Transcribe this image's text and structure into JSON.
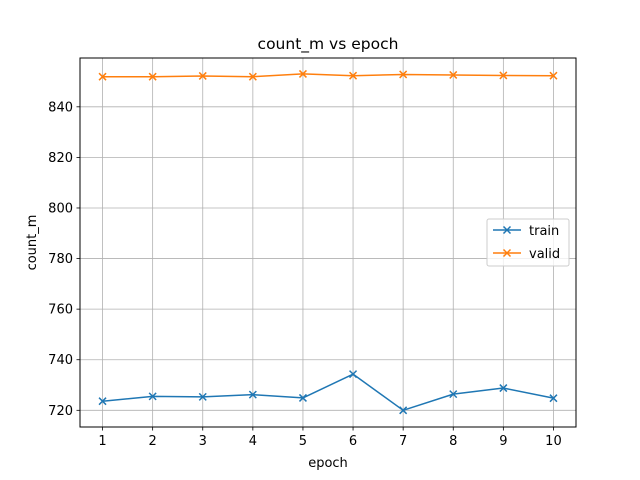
{
  "chart_data": {
    "type": "line",
    "title": "count_m vs epoch",
    "xlabel": "epoch",
    "ylabel": "count_m",
    "x": [
      1,
      2,
      3,
      4,
      5,
      6,
      7,
      8,
      9,
      10
    ],
    "xticks": [
      "1",
      "2",
      "3",
      "4",
      "5",
      "6",
      "7",
      "8",
      "9",
      "10"
    ],
    "yticks": [
      720,
      740,
      760,
      780,
      800,
      820,
      840
    ],
    "xlim": [
      0.55,
      10.45
    ],
    "ylim": [
      713.4,
      859.3
    ],
    "grid": true,
    "legend_position": "center-right",
    "marker": "x",
    "series": [
      {
        "name": "train",
        "color": "#1f77b4",
        "values": [
          723.6,
          725.5,
          725.3,
          726.2,
          724.9,
          734.3,
          720.0,
          726.4,
          728.8,
          724.8
        ]
      },
      {
        "name": "valid",
        "color": "#ff7f0e",
        "values": [
          851.9,
          851.9,
          852.2,
          851.9,
          853.0,
          852.3,
          852.8,
          852.6,
          852.4,
          852.3
        ]
      }
    ]
  }
}
